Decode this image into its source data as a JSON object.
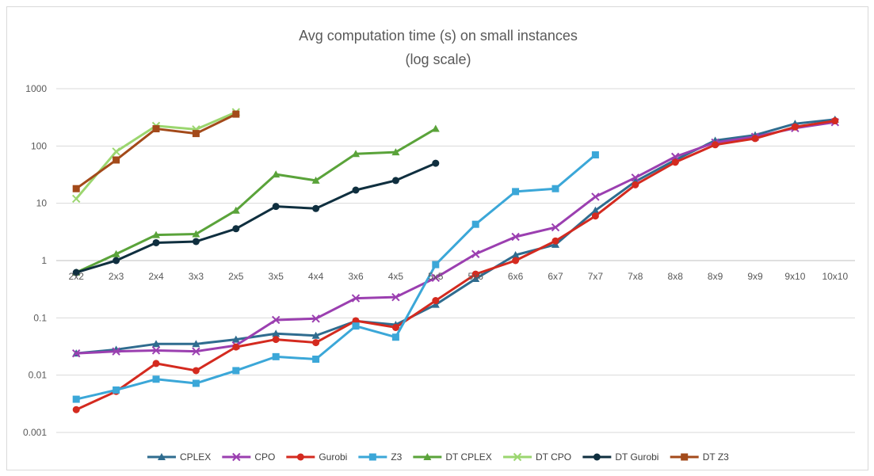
{
  "chart_data": {
    "type": "line",
    "title": "Avg computation time (s) on small instances",
    "subtitle": "(log scale)",
    "xlabel": "",
    "ylabel": "",
    "yscale": "log",
    "ylim": [
      0.001,
      1000
    ],
    "y_ticks": [
      "1000",
      "100",
      "10",
      "1",
      "0.1",
      "0.01",
      "0.001"
    ],
    "grid": "horizontal",
    "legend_position": "bottom",
    "categories": [
      "2x2",
      "2x3",
      "2x4",
      "3x3",
      "2x5",
      "3x5",
      "4x4",
      "3x6",
      "4x5",
      "5x5",
      "5x6",
      "6x6",
      "6x7",
      "7x7",
      "7x8",
      "8x8",
      "8x9",
      "9x9",
      "9x10",
      "10x10"
    ],
    "series": [
      {
        "name": "CPLEX",
        "color": "#2f6c8f",
        "marker": "triangle",
        "values": [
          0.024,
          0.028,
          0.035,
          0.035,
          0.042,
          0.053,
          0.049,
          0.088,
          0.076,
          0.17,
          0.48,
          1.25,
          1.9,
          7.5,
          24,
          57,
          125,
          155,
          245,
          290
        ]
      },
      {
        "name": "CPO",
        "color": "#9b3fb0",
        "marker": "x",
        "values": [
          0.024,
          0.026,
          0.027,
          0.026,
          0.033,
          0.092,
          0.097,
          0.22,
          0.23,
          0.5,
          1.3,
          2.6,
          3.8,
          13,
          28,
          65,
          115,
          145,
          205,
          260
        ]
      },
      {
        "name": "Gurobi",
        "color": "#d42a1f",
        "marker": "circle",
        "values": [
          0.0025,
          0.0052,
          0.016,
          0.012,
          0.031,
          0.042,
          0.037,
          0.089,
          0.068,
          0.2,
          0.58,
          1.0,
          2.2,
          6.0,
          21,
          52,
          105,
          135,
          215,
          275
        ]
      },
      {
        "name": "Z3",
        "color": "#3ba7d8",
        "marker": "square",
        "values": [
          0.0038,
          0.0055,
          0.0085,
          0.0072,
          0.012,
          0.021,
          0.019,
          0.072,
          0.046,
          0.85,
          4.3,
          16,
          18,
          70,
          null,
          null,
          null,
          null,
          null,
          null
        ]
      },
      {
        "name": "DT CPLEX",
        "color": "#5aa33a",
        "marker": "triangle",
        "values": [
          0.62,
          1.3,
          2.8,
          2.9,
          7.5,
          32,
          25,
          73,
          78,
          200,
          null,
          null,
          null,
          null,
          null,
          null,
          null,
          null,
          null,
          null
        ]
      },
      {
        "name": "DT CPO",
        "color": "#9bd66f",
        "marker": "x",
        "values": [
          12,
          80,
          225,
          195,
          390,
          null,
          null,
          null,
          null,
          null,
          null,
          null,
          null,
          null,
          null,
          null,
          null,
          null,
          null,
          null
        ]
      },
      {
        "name": "DT Gurobi",
        "color": "#0f2f3f",
        "marker": "circle",
        "values": [
          0.62,
          1.0,
          2.05,
          2.15,
          3.6,
          8.8,
          8.1,
          17,
          25,
          50,
          null,
          null,
          null,
          null,
          null,
          null,
          null,
          null,
          null,
          null
        ]
      },
      {
        "name": "DT Z3",
        "color": "#a34a1a",
        "marker": "square",
        "values": [
          18,
          57,
          200,
          165,
          360,
          null,
          null,
          null,
          null,
          null,
          null,
          null,
          null,
          null,
          null,
          null,
          null,
          null,
          null,
          null
        ]
      }
    ]
  }
}
